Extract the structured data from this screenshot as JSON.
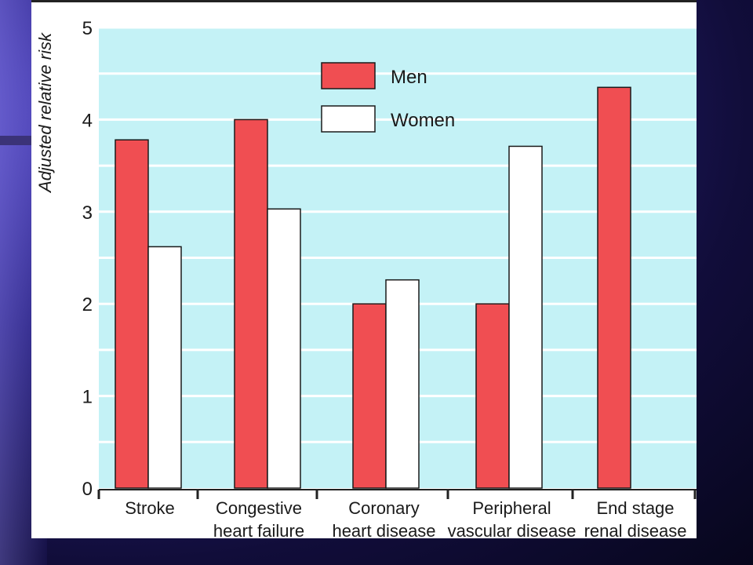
{
  "chart_data": {
    "type": "bar",
    "categories": [
      [
        "Stroke"
      ],
      [
        "Congestive",
        "heart failure"
      ],
      [
        "Coronary",
        "heart disease"
      ],
      [
        "Peripheral",
        "vascular disease"
      ],
      [
        "End stage",
        "renal disease"
      ]
    ],
    "series": [
      {
        "name": "Men",
        "values": [
          3.78,
          4.0,
          2.0,
          2.0,
          4.35
        ],
        "color": "#f04e52"
      },
      {
        "name": "Women",
        "values": [
          2.62,
          3.03,
          2.26,
          3.71,
          null
        ],
        "color": "#ffffff"
      }
    ],
    "ylabel": "Adjusted relative risk",
    "xlabel": "",
    "ylim": [
      0,
      5
    ],
    "yticks": [
      0,
      1,
      2,
      3,
      4,
      5
    ],
    "grid": true,
    "legend_position": "top-center",
    "colors": {
      "plot_background": "#c4f2f6",
      "gridline": "#ffffff"
    }
  }
}
